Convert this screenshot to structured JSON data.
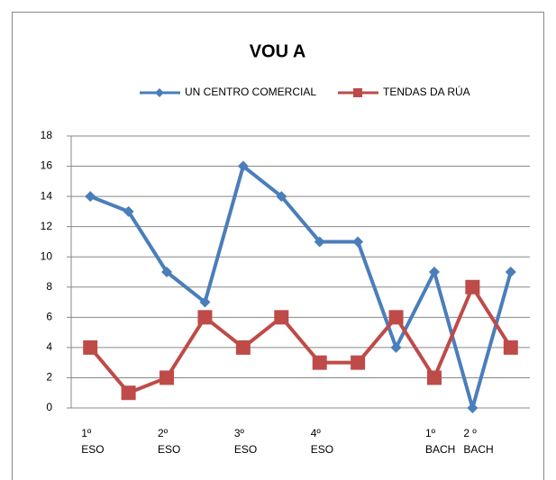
{
  "chart_data": {
    "type": "line",
    "title": "VOU A",
    "categories": [
      [
        "1º",
        "ESO"
      ],
      null,
      [
        "2º",
        "ESO"
      ],
      null,
      [
        "3º",
        "ESO"
      ],
      null,
      [
        "4º",
        "ESO"
      ],
      null,
      null,
      [
        "1º",
        "BACH"
      ],
      [
        "2 º",
        "BACH"
      ],
      null
    ],
    "series": [
      {
        "name": "UN CENTRO COMERCIAL",
        "color": "#4a7ebb",
        "marker": "diamond",
        "values": [
          14,
          13,
          9,
          7,
          16,
          14,
          11,
          11,
          4,
          9,
          0,
          9
        ]
      },
      {
        "name": "TENDAS DA RÚA",
        "color": "#be4b48",
        "marker": "square",
        "values": [
          4,
          1,
          2,
          6,
          4,
          6,
          3,
          3,
          6,
          2,
          8,
          4
        ]
      }
    ],
    "ylim": [
      0,
      18
    ],
    "yticks": [
      0,
      2,
      4,
      6,
      8,
      10,
      12,
      14,
      16,
      18
    ],
    "grid": true,
    "legend": "top"
  }
}
